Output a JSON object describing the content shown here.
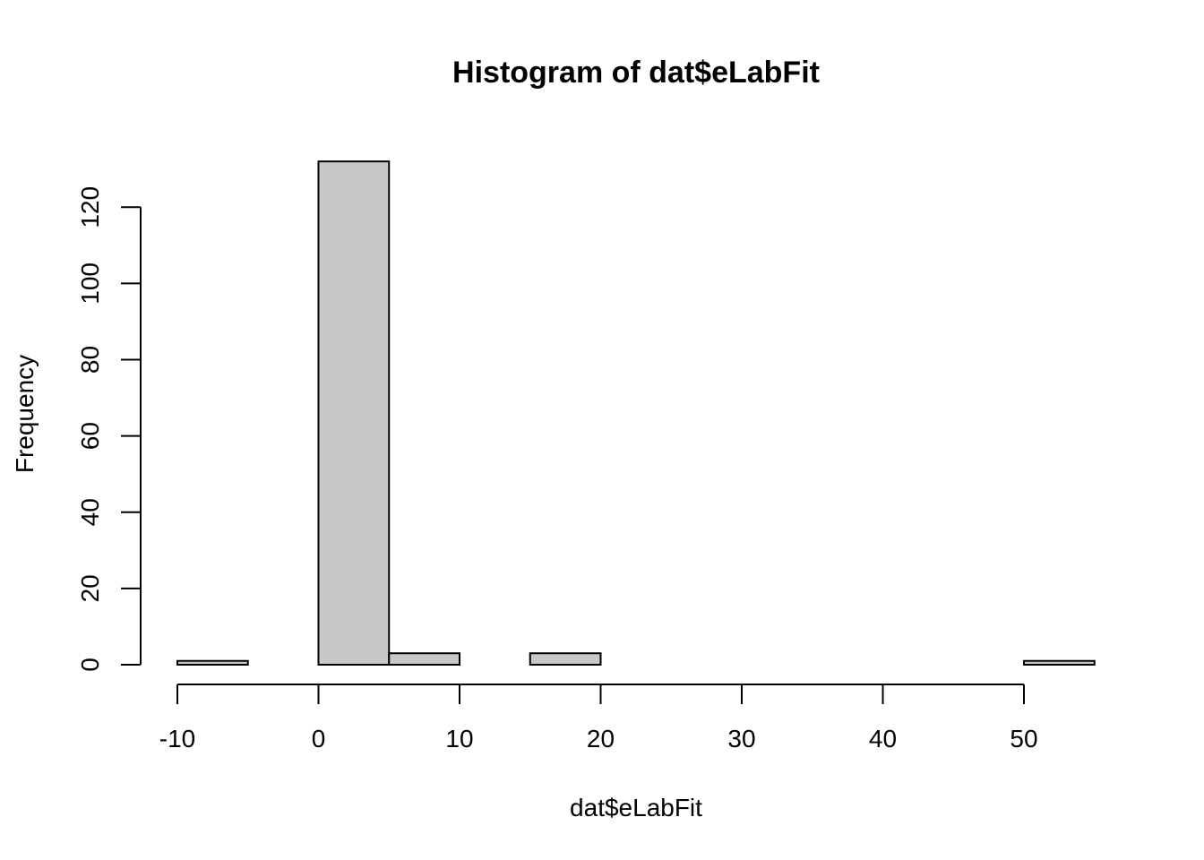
{
  "chart_data": {
    "type": "bar",
    "title": "Histogram of dat$eLabFit",
    "xlabel": "dat$eLabFit",
    "ylabel": "Frequency",
    "bin_edges": [
      -10,
      -5,
      0,
      5,
      10,
      15,
      20,
      25,
      30,
      35,
      40,
      45,
      50,
      55
    ],
    "values": [
      1,
      0,
      132,
      3,
      0,
      3,
      0,
      0,
      0,
      0,
      0,
      0,
      1
    ],
    "x_ticks": [
      -10,
      0,
      10,
      20,
      30,
      40,
      50
    ],
    "y_ticks": [
      0,
      20,
      40,
      60,
      80,
      100,
      120
    ],
    "xlim": [
      -10,
      55
    ],
    "ylim": [
      0,
      132
    ],
    "bar_fill": "#c8c8c8",
    "bar_stroke": "#000000",
    "grid": false,
    "legend": "none"
  }
}
